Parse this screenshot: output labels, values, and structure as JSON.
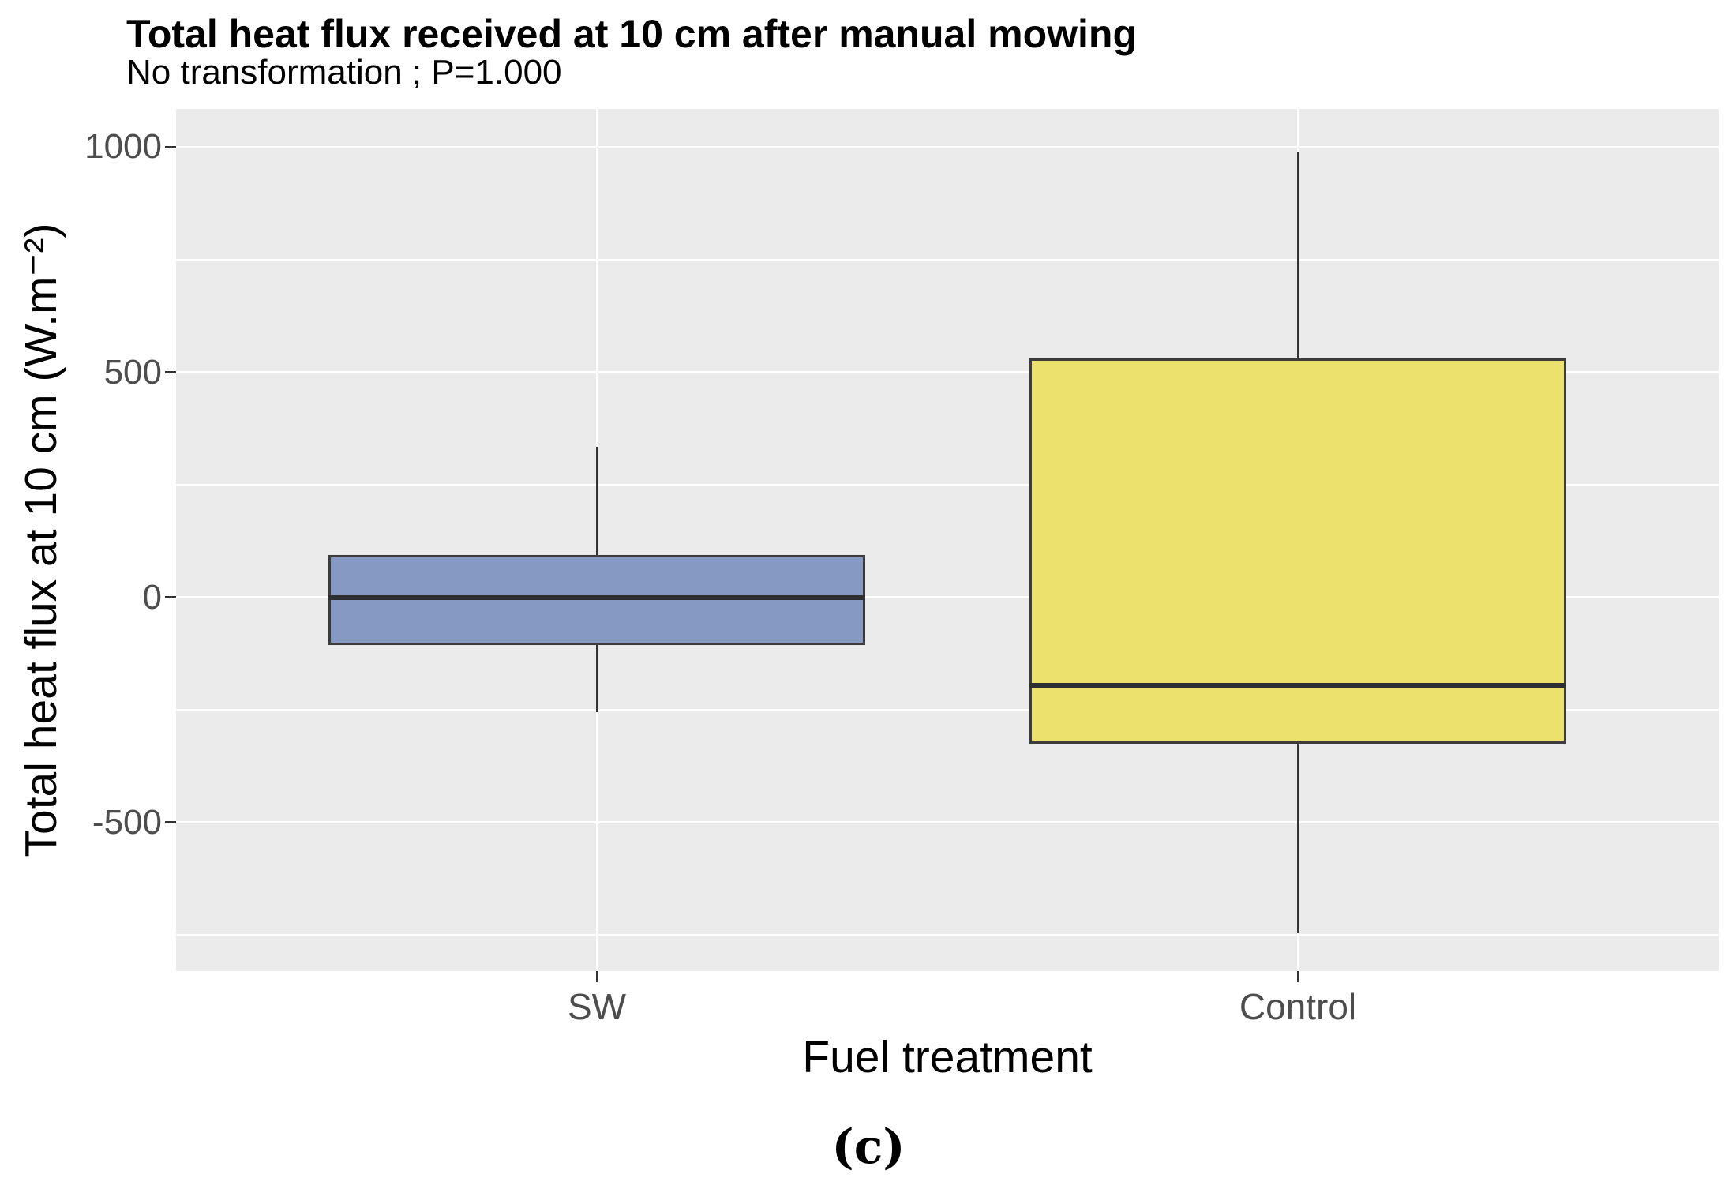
{
  "chart_data": {
    "type": "boxplot",
    "title": "Total heat flux received at 10 cm after manual mowing",
    "subtitle": "No transformation ; P=1.000",
    "xlabel": "Fuel treatment",
    "ylabel": "Total heat flux at 10 cm (W.m⁻²)",
    "caption": "(c)",
    "categories": [
      "SW",
      "Control"
    ],
    "series": [
      {
        "name": "SW",
        "fill": "#8699C3",
        "whisker_low": -255,
        "q1": -105,
        "median": 0,
        "q3": 95,
        "whisker_high": 335
      },
      {
        "name": "Control",
        "fill": "#ECE16C",
        "whisker_low": -745,
        "q1": -325,
        "median": -195,
        "q3": 530,
        "whisker_high": 990
      }
    ],
    "y_ticks": [
      {
        "value": 1000,
        "label": "1000"
      },
      {
        "value": 500,
        "label": "500"
      },
      {
        "value": 0,
        "label": "0"
      },
      {
        "value": -500,
        "label": "-500"
      }
    ],
    "y_minor_gridlines": [
      750,
      250,
      -250,
      -750
    ],
    "ylim": [
      -830,
      1085
    ],
    "grid": "white major and minor horizontal lines, white vertical line at each category, on gray panel",
    "legend_position": "none",
    "colors": {
      "panel_background": "#EBEBEB",
      "gridline": "#FFFFFF",
      "box_outline": "#3C3C3C",
      "median_line": "#2E2E2E",
      "whisker": "#333333",
      "tick_label": "#4D4D4D",
      "title": "#000000",
      "sw_fill": "#8699C3",
      "control_fill": "#ECE16C"
    }
  }
}
